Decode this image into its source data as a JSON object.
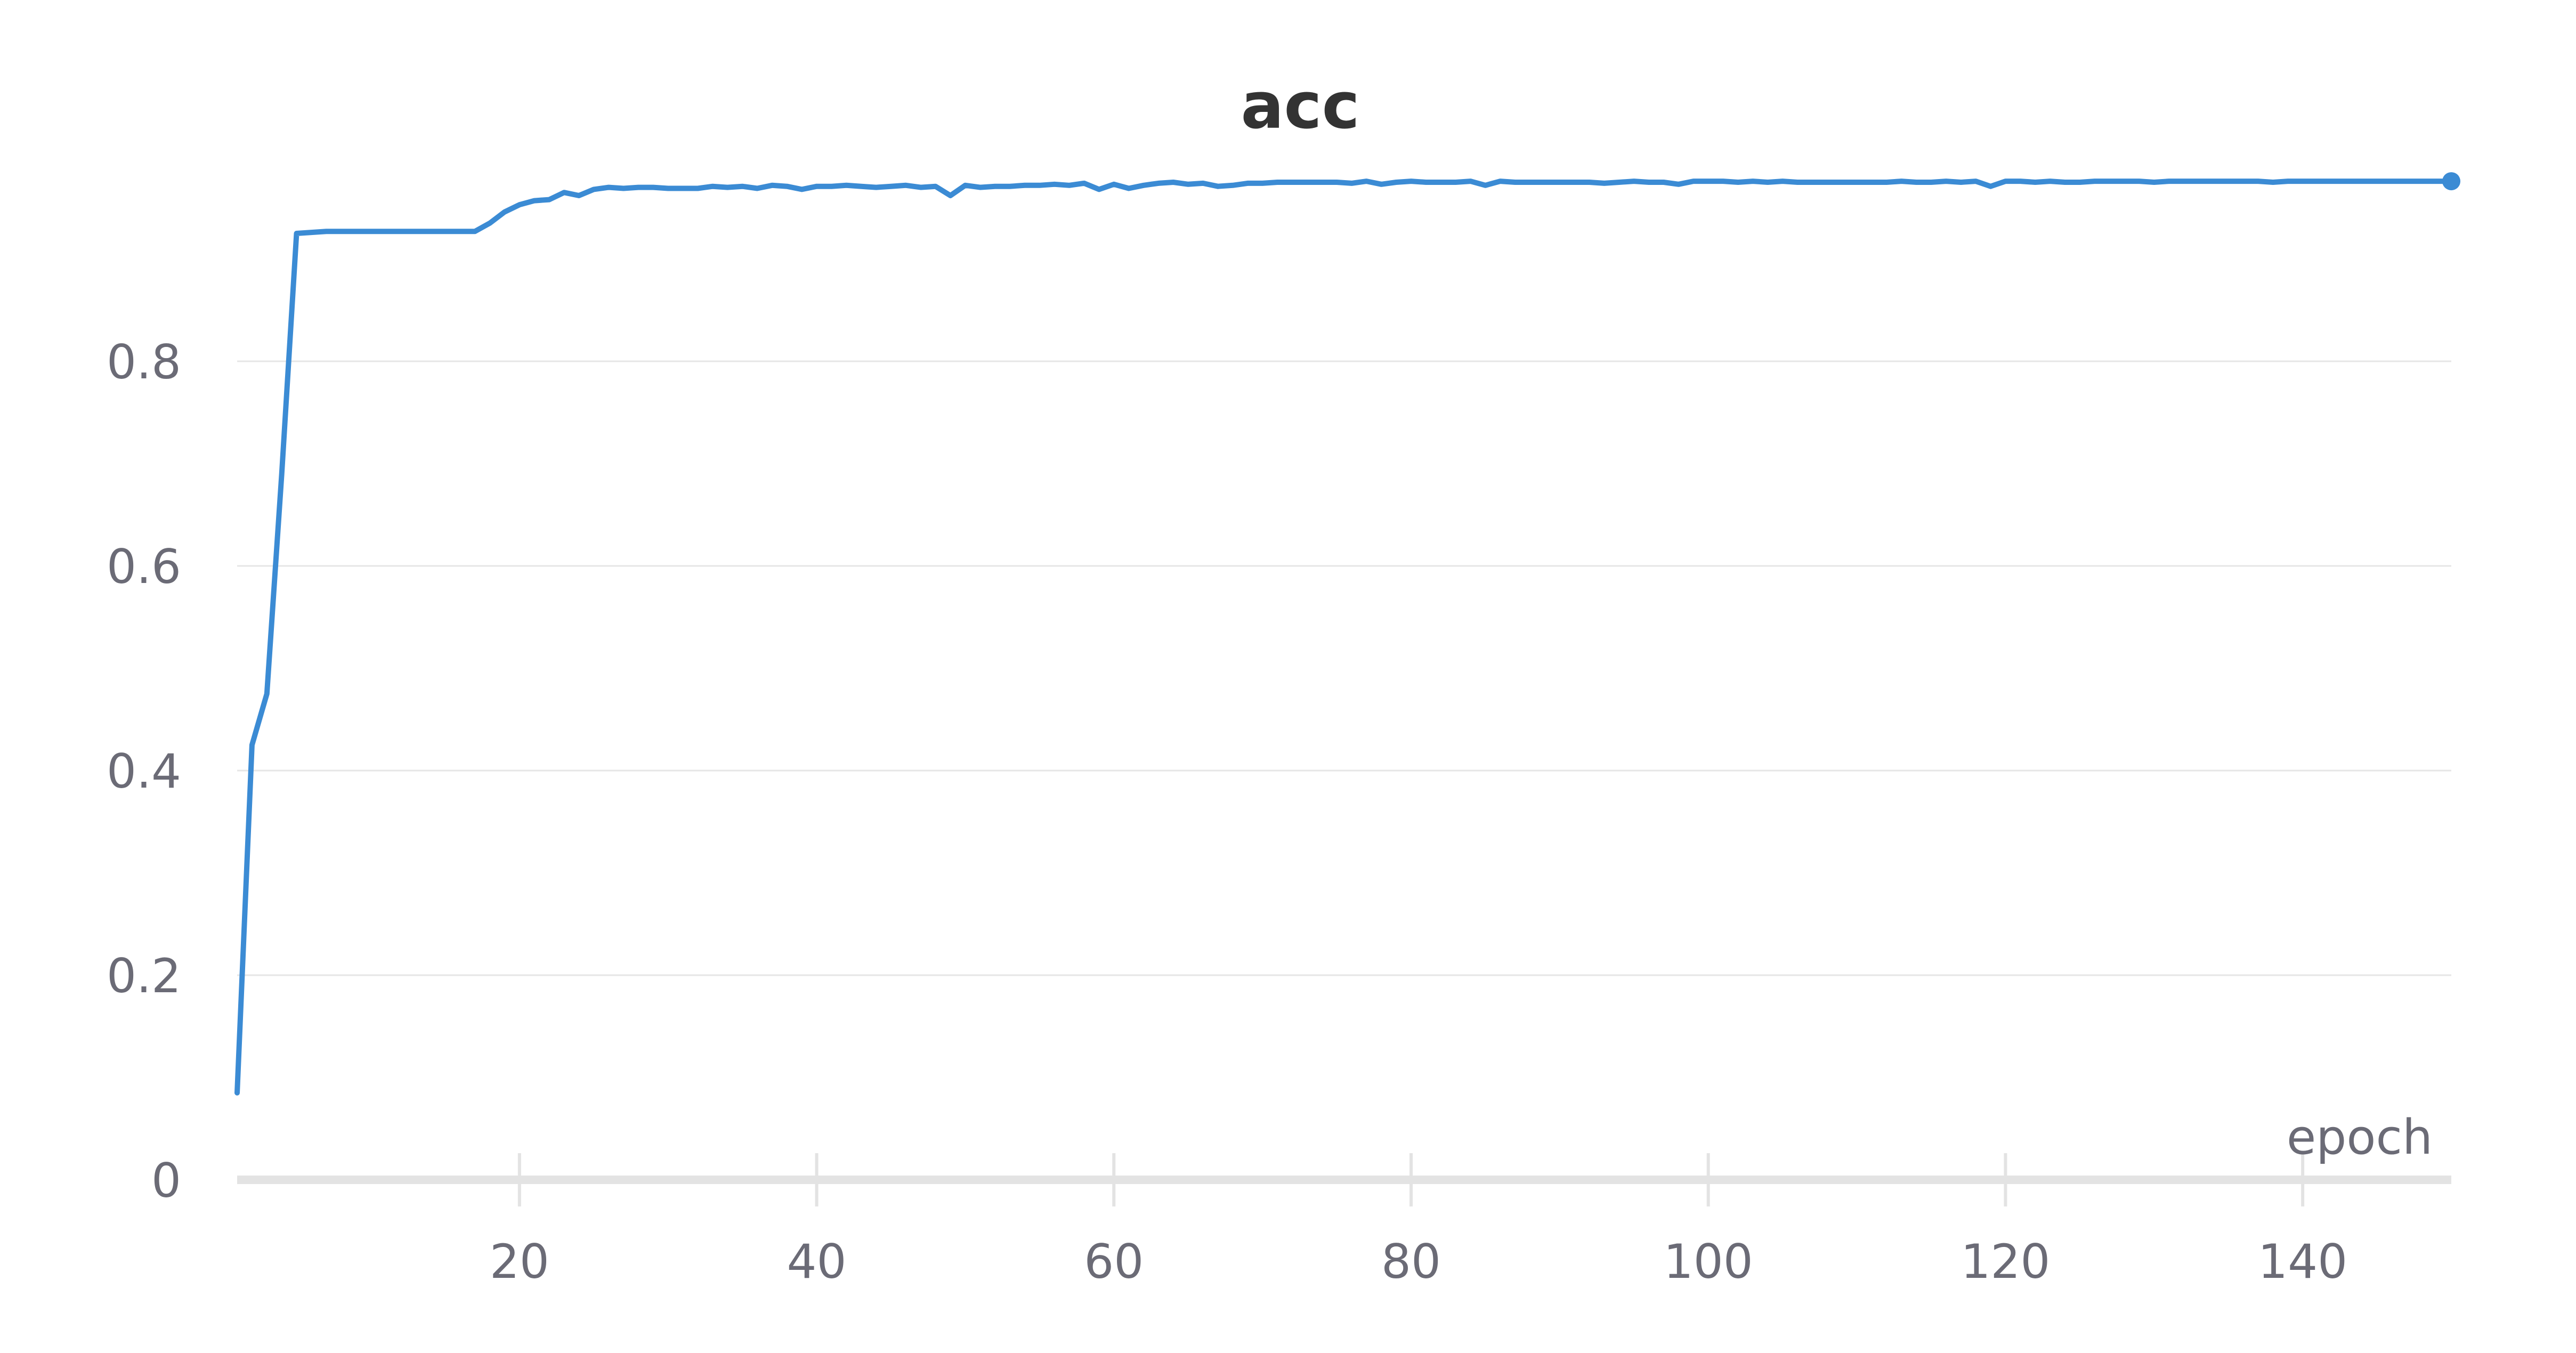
{
  "chart_data": {
    "type": "line",
    "title": "acc",
    "xlabel": "epoch",
    "ylabel": "",
    "xlim": [
      1,
      150
    ],
    "ylim": [
      0,
      1
    ],
    "grid": true,
    "legend": "none",
    "x_ticks": [
      20,
      40,
      60,
      80,
      100,
      120,
      140
    ],
    "x_tick_labels": [
      "20",
      "40",
      "60",
      "80",
      "100",
      "120",
      "140"
    ],
    "y_ticks": [
      0,
      0.2,
      0.4,
      0.6,
      0.8
    ],
    "y_tick_labels": [
      "0",
      "0.2",
      "0.4",
      "0.6",
      "0.8"
    ],
    "colors": {
      "line": "#3b8bd4",
      "grid": "#e6e6e6",
      "axis": "#e3e3e3",
      "text": "#6b6b76",
      "title": "#333333"
    },
    "series": [
      {
        "values": [
          0.085,
          0.425,
          0.475,
          0.69,
          0.925,
          0.926,
          0.927,
          0.927,
          0.927,
          0.927,
          0.927,
          0.927,
          0.927,
          0.927,
          0.927,
          0.927,
          0.927,
          0.935,
          0.946,
          0.953,
          0.957,
          0.958,
          0.965,
          0.962,
          0.968,
          0.97,
          0.969,
          0.97,
          0.97,
          0.969,
          0.969,
          0.969,
          0.971,
          0.97,
          0.971,
          0.969,
          0.972,
          0.971,
          0.968,
          0.971,
          0.971,
          0.972,
          0.971,
          0.97,
          0.971,
          0.972,
          0.97,
          0.971,
          0.962,
          0.972,
          0.97,
          0.971,
          0.971,
          0.972,
          0.972,
          0.973,
          0.972,
          0.974,
          0.968,
          0.973,
          0.969,
          0.972,
          0.974,
          0.975,
          0.973,
          0.974,
          0.971,
          0.972,
          0.974,
          0.974,
          0.975,
          0.975,
          0.975,
          0.975,
          0.975,
          0.974,
          0.976,
          0.973,
          0.975,
          0.976,
          0.975,
          0.975,
          0.975,
          0.976,
          0.972,
          0.976,
          0.975,
          0.975,
          0.975,
          0.975,
          0.975,
          0.975,
          0.974,
          0.975,
          0.976,
          0.975,
          0.975,
          0.973,
          0.976,
          0.976,
          0.976,
          0.975,
          0.976,
          0.975,
          0.976,
          0.975,
          0.975,
          0.975,
          0.975,
          0.975,
          0.975,
          0.975,
          0.976,
          0.975,
          0.975,
          0.976,
          0.975,
          0.976,
          0.971,
          0.976,
          0.976,
          0.975,
          0.976,
          0.975,
          0.975,
          0.976,
          0.976,
          0.976,
          0.976,
          0.975,
          0.976,
          0.976,
          0.976,
          0.976,
          0.976,
          0.976,
          0.976,
          0.975,
          0.976,
          0.976,
          0.976,
          0.976,
          0.976,
          0.976,
          0.976,
          0.976,
          0.976,
          0.976,
          0.976,
          0.976
        ]
      }
    ]
  }
}
